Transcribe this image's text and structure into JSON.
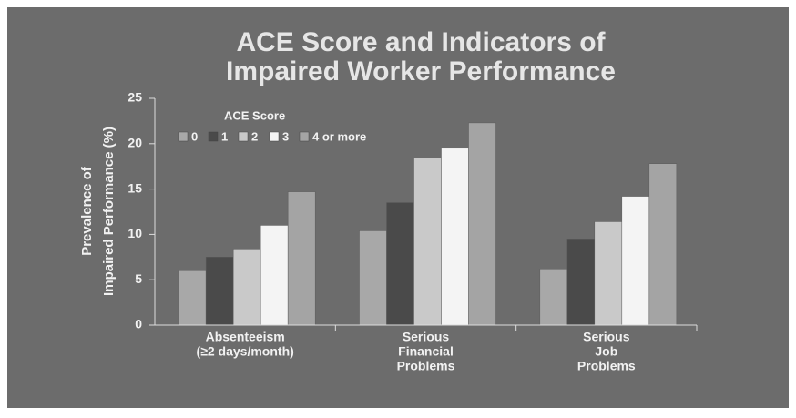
{
  "chart_data": {
    "type": "bar",
    "title": [
      "ACE Score and Indicators of",
      "Impaired Worker  Performance"
    ],
    "ylabel": [
      "Prevalence of",
      "Impaired Performance (%)"
    ],
    "legend_title": "ACE Score",
    "categories": [
      [
        "Absenteeism",
        "(≥2 days/month)"
      ],
      [
        "Serious",
        "Financial",
        "Problems"
      ],
      [
        "Serious",
        "Job",
        "Problems"
      ]
    ],
    "series": [
      {
        "name": "0",
        "color": "#a8a8a8",
        "values": [
          6,
          10.4,
          6.2
        ]
      },
      {
        "name": "1",
        "color": "#4a4a4a",
        "values": [
          7.5,
          13.5,
          9.5
        ]
      },
      {
        "name": "2",
        "color": "#c9c9c9",
        "values": [
          8.4,
          18.4,
          11.4
        ]
      },
      {
        "name": "3",
        "color": "#f4f4f4",
        "values": [
          11,
          19.5,
          14.2
        ]
      },
      {
        "name": "4 or more",
        "color": "#a4a4a4",
        "values": [
          14.7,
          22.3,
          17.8
        ]
      }
    ],
    "ylim": [
      0,
      25
    ],
    "yticks": [
      0,
      5,
      10,
      15,
      20,
      25
    ],
    "grid": false,
    "legend": "upper left"
  }
}
